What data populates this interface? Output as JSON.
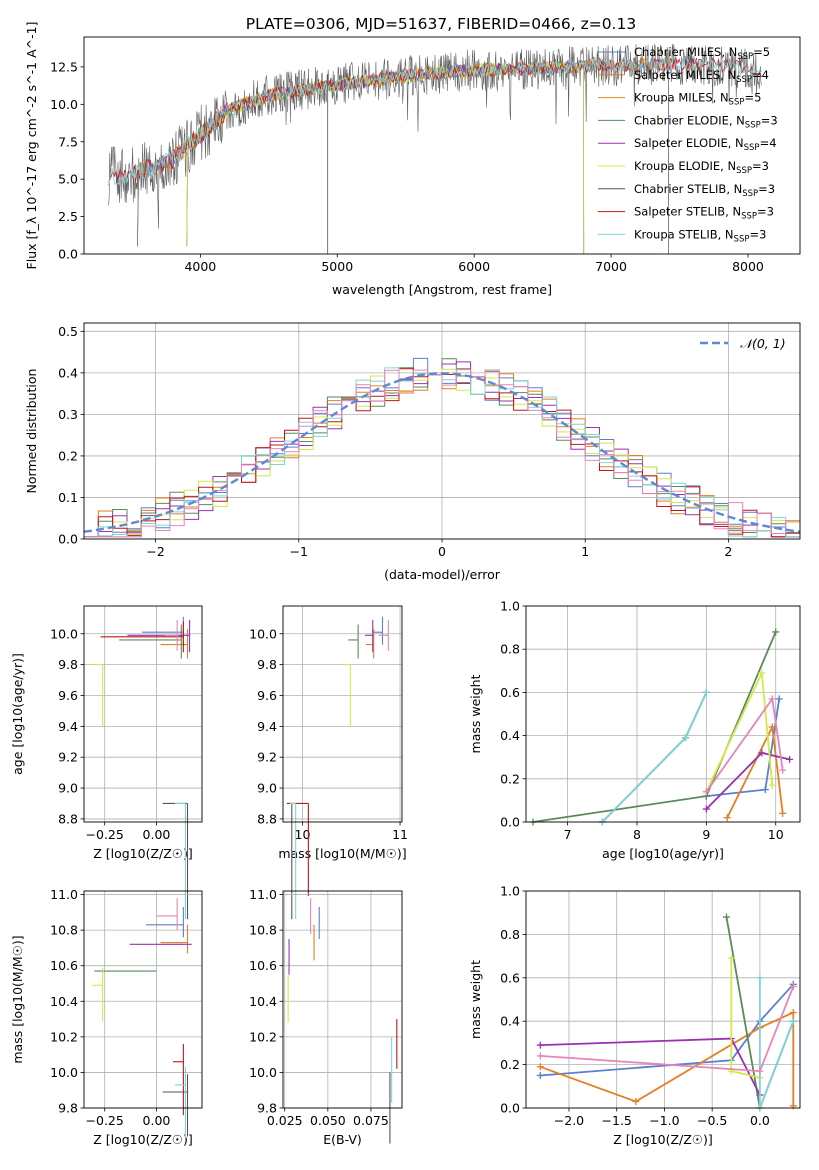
{
  "figure_title": "PLATE=0306, MJD=51637, FIBERID=0466, z=0.13",
  "colors": {
    "Chabrier MILES": "#5b7fd1",
    "Salpeter MILES": "#e67e22",
    "Kroupa MILES": "#e08a1e",
    "Chabrier ELODIE": "#5a8a5a",
    "Salpeter ELODIE": "#9b30b0",
    "Kroupa ELODIE": "#d4e84a",
    "Chabrier STELIB": "#555555",
    "Salpeter STELIB": "#c0141b",
    "Kroupa STELIB": "#7fd4d8",
    "pink": "#e586b8",
    "gaussian": "#5b8ad6"
  },
  "chart_data": [
    {
      "type": "line",
      "title": "PLATE=0306, MJD=51637, FIBERID=0466, z=0.13",
      "xlabel": "wavelength [Angstrom, rest frame]",
      "ylabel": "Flux [f_λ 10^-17 erg cm^-2 s^-1 A^-1]",
      "xlim": [
        3150,
        8380
      ],
      "ylim": [
        0,
        14.5
      ],
      "xticks": [
        "4000",
        "5000",
        "6000",
        "7000",
        "8000"
      ],
      "yticks": [
        "0.0",
        "2.5",
        "5.0",
        "7.5",
        "10.0",
        "12.5"
      ],
      "spectrum_shape": [
        [
          3330,
          5.2
        ],
        [
          3500,
          5.3
        ],
        [
          3800,
          6.3
        ],
        [
          4000,
          8.0
        ],
        [
          4200,
          9.6
        ],
        [
          4500,
          10.6
        ],
        [
          5000,
          11.3
        ],
        [
          5500,
          11.9
        ],
        [
          6000,
          12.3
        ],
        [
          6500,
          12.4
        ],
        [
          7000,
          12.6
        ],
        [
          7500,
          12.7
        ],
        [
          7800,
          12.6
        ],
        [
          8000,
          12.4
        ],
        [
          8100,
          11.9
        ]
      ],
      "legend": [
        {
          "label": "Chabrier MILES, N",
          "sub": "SSP",
          "n": "=5"
        },
        {
          "label": "Salpeter MILES, N",
          "sub": "SSP",
          "n": "=4"
        },
        {
          "label": "Kroupa MILES, N",
          "sub": "SSP",
          "n": "=5"
        },
        {
          "label": "Chabrier ELODIE, N",
          "sub": "SSP",
          "n": "=3"
        },
        {
          "label": "Salpeter ELODIE, N",
          "sub": "SSP",
          "n": "=4"
        },
        {
          "label": "Kroupa ELODIE, N",
          "sub": "SSP",
          "n": "=3"
        },
        {
          "label": "Chabrier STELIB, N",
          "sub": "SSP",
          "n": "=3"
        },
        {
          "label": "Salpeter STELIB, N",
          "sub": "SSP",
          "n": "=3"
        },
        {
          "label": "Kroupa STELIB, N",
          "sub": "SSP",
          "n": "=3"
        }
      ],
      "series": [
        {
          "name": "Chabrier MILES, N_SSP=5",
          "x_start": 3540,
          "x_end": 7420
        },
        {
          "name": "Salpeter MILES, N_SSP=4",
          "x_start": 3540,
          "x_end": 7420
        },
        {
          "name": "Kroupa MILES, N_SSP=5",
          "x_start": 3540,
          "x_end": 7420
        },
        {
          "name": "Chabrier ELODIE, N_SSP=3",
          "x_start": 3900,
          "x_end": 6800
        },
        {
          "name": "Salpeter ELODIE, N_SSP=4",
          "x_start": 3900,
          "x_end": 6800
        },
        {
          "name": "Kroupa ELODIE, N_SSP=3",
          "x_start": 3900,
          "x_end": 6800
        },
        {
          "name": "Chabrier STELIB, N_SSP=3",
          "x_start": 3330,
          "x_end": 8100
        },
        {
          "name": "Salpeter STELIB, N_SSP=3",
          "x_start": 3330,
          "x_end": 8100
        },
        {
          "name": "Kroupa STELIB, N_SSP=3",
          "x_start": 3330,
          "x_end": 8100
        }
      ]
    },
    {
      "type": "histogram",
      "xlabel": "(data-model)/error",
      "ylabel": "Normed distribution",
      "xlim": [
        -2.5,
        2.5
      ],
      "ylim": [
        0,
        0.52
      ],
      "xticks": [
        "-2",
        "-1",
        "0",
        "1",
        "2"
      ],
      "yticks": [
        "0.0",
        "0.1",
        "0.2",
        "0.3",
        "0.4",
        "0.5"
      ],
      "legend": [
        "𝒩(0, 1)"
      ],
      "bin_width": 0.1
    },
    {
      "type": "errorbar",
      "xlabel": "Z [log10(Z/Z☉)]",
      "ylabel": "age [log10(age/yr)]",
      "xlim": [
        -0.35,
        0.22
      ],
      "ylim": [
        8.78,
        10.18
      ],
      "xticks": [
        "-0.25",
        "0.00"
      ],
      "yticks": [
        "8.8",
        "9.0",
        "9.2",
        "9.4",
        "9.6",
        "9.8",
        "10.0"
      ],
      "points": [
        {
          "c": "Chabrier MILES",
          "x": 0.13,
          "y": 10.01,
          "xe": 0.2,
          "ye": 0.08
        },
        {
          "c": "Salpeter MILES",
          "x": 0.15,
          "y": 9.93,
          "xe": 0.13,
          "ye": 0.09
        },
        {
          "c": "Chabrier ELODIE",
          "x": 0.12,
          "y": 9.96,
          "xe": 0.3,
          "ye": 0.12
        },
        {
          "c": "Salpeter ELODIE",
          "x": 0.16,
          "y": 9.99,
          "xe": 0.3,
          "ye": 0.11
        },
        {
          "c": "Kroupa ELODIE",
          "x": -0.26,
          "y": 9.8,
          "xe": 0.05,
          "ye": 0.4
        },
        {
          "c": "Chabrier STELIB",
          "x": 0.15,
          "y": 8.9,
          "xe": 0.12,
          "ye": 0.75
        },
        {
          "c": "Salpeter STELIB",
          "x": 0.13,
          "y": 9.98,
          "xe": 0.4,
          "ye": 0.1
        },
        {
          "c": "Kroupa STELIB",
          "x": 0.14,
          "y": 8.9,
          "xe": 0.05,
          "ye": 0.75
        },
        {
          "c": "pink",
          "x": 0.1,
          "y": 9.99,
          "xe": 0.06,
          "ye": 0.1
        }
      ]
    },
    {
      "type": "errorbar",
      "xlabel": "mass [log10(M/M☉)]",
      "xlim": [
        9.8,
        11.02
      ],
      "ylim": [
        8.78,
        10.18
      ],
      "xticks": [
        "10",
        "11"
      ],
      "yticks": [
        "8.8",
        "9.0",
        "9.2",
        "9.4",
        "9.6",
        "9.8",
        "10.0"
      ],
      "points": [
        {
          "c": "Chabrier MILES",
          "x": 10.82,
          "y": 10.01,
          "xe": 0.1,
          "ye": 0.08
        },
        {
          "c": "Salpeter MILES",
          "x": 10.73,
          "y": 9.93,
          "xe": 0.08,
          "ye": 0.09
        },
        {
          "c": "Chabrier ELODIE",
          "x": 10.57,
          "y": 9.96,
          "xe": 0.1,
          "ye": 0.12
        },
        {
          "c": "Salpeter ELODIE",
          "x": 10.72,
          "y": 9.99,
          "xe": 0.08,
          "ye": 0.11
        },
        {
          "c": "Kroupa ELODIE",
          "x": 10.49,
          "y": 9.8,
          "xe": 0.08,
          "ye": 0.4
        },
        {
          "c": "Chabrier STELIB",
          "x": 9.89,
          "y": 8.9,
          "xe": 0.05,
          "ye": 0.75
        },
        {
          "c": "Salpeter STELIB",
          "x": 10.06,
          "y": 8.9,
          "xe": 0.22,
          "ye": 0.6
        },
        {
          "c": "Kroupa STELIB",
          "x": 9.93,
          "y": 8.9,
          "xe": 0.06,
          "ye": 0.75
        },
        {
          "c": "pink",
          "x": 10.88,
          "y": 9.99,
          "xe": 0.1,
          "ye": 0.1
        }
      ]
    },
    {
      "type": "line",
      "xlabel": "age [log10(age/yr)]",
      "ylabel": "mass weight",
      "xlim": [
        6.4,
        10.35
      ],
      "ylim": [
        0,
        1.0
      ],
      "xticks": [
        "7",
        "8",
        "9",
        "10"
      ],
      "yticks": [
        "0.0",
        "0.2",
        "0.4",
        "0.6",
        "0.8",
        "1.0"
      ],
      "series": [
        {
          "c": "Chabrier MILES",
          "x": [
            9.0,
            9.85,
            10.05
          ],
          "y": [
            0.12,
            0.15,
            0.57
          ]
        },
        {
          "c": "Salpeter MILES",
          "x": [
            9.3,
            9.95,
            10.1
          ],
          "y": [
            0.02,
            0.44,
            0.04
          ]
        },
        {
          "c": "Chabrier ELODIE",
          "x": [
            6.5,
            9.0,
            10.0
          ],
          "y": [
            0.0,
            0.12,
            0.88
          ]
        },
        {
          "c": "Salpeter ELODIE",
          "x": [
            9.0,
            9.8,
            10.2
          ],
          "y": [
            0.06,
            0.32,
            0.29
          ]
        },
        {
          "c": "Kroupa ELODIE",
          "x": [
            9.0,
            9.8,
            9.95
          ],
          "y": [
            0.14,
            0.69,
            0.17
          ]
        },
        {
          "c": "Chabrier STELIB",
          "x": [
            7.5,
            8.7,
            9.0
          ],
          "y": [
            0.0,
            0.39,
            0.6
          ]
        },
        {
          "c": "Kroupa STELIB",
          "x": [
            7.5,
            8.7,
            9.0
          ],
          "y": [
            0.0,
            0.39,
            0.6
          ]
        },
        {
          "c": "pink",
          "x": [
            9.0,
            9.95,
            10.1
          ],
          "y": [
            0.14,
            0.57,
            0.24
          ]
        }
      ]
    },
    {
      "type": "errorbar",
      "xlabel": "Z [log10(Z/Z☉)]",
      "ylabel": "mass [log10(M/M☉)]",
      "xlim": [
        -0.35,
        0.22
      ],
      "ylim": [
        9.8,
        11.02
      ],
      "xticks": [
        "-0.25",
        "0.00"
      ],
      "yticks": [
        "9.8",
        "10.0",
        "10.2",
        "10.4",
        "10.6",
        "10.8",
        "11.0"
      ],
      "points": [
        {
          "c": "Chabrier MILES",
          "x": 0.13,
          "y": 10.83,
          "xe": 0.18,
          "ye": 0.07
        },
        {
          "c": "Salpeter MILES",
          "x": 0.15,
          "y": 10.73,
          "xe": 0.13,
          "ye": 0.06
        },
        {
          "c": "Chabrier ELODIE",
          "x": 0.0,
          "y": 10.57,
          "xe": 0.3,
          "ye": 0.0
        },
        {
          "c": "Salpeter ELODIE",
          "x": 0.17,
          "y": 10.72,
          "xe": 0.3,
          "ye": 0.0
        },
        {
          "c": "Kroupa ELODIE",
          "x": -0.26,
          "y": 10.49,
          "xe": 0.05,
          "ye": 0.2
        },
        {
          "c": "Chabrier STELIB",
          "x": 0.15,
          "y": 9.89,
          "xe": 0.12,
          "ye": 0.25
        },
        {
          "c": "Salpeter STELIB",
          "x": 0.13,
          "y": 10.06,
          "xe": 0.05,
          "ye": 0.3
        },
        {
          "c": "Kroupa STELIB",
          "x": 0.14,
          "y": 9.93,
          "xe": 0.05,
          "ye": 0.3
        },
        {
          "c": "pink",
          "x": 0.1,
          "y": 10.88,
          "xe": 0.1,
          "ye": 0.08
        }
      ]
    },
    {
      "type": "errorbar",
      "xlabel": "E(B-V)",
      "xlim": [
        0.024,
        0.093
      ],
      "ylim": [
        9.8,
        11.02
      ],
      "xticks": [
        "0.025",
        "0.050",
        "0.075"
      ],
      "yticks": [
        "9.8",
        "10.0",
        "10.2",
        "10.4",
        "10.6",
        "10.8",
        "11.0"
      ],
      "points": [
        {
          "c": "Chabrier MILES",
          "x": 0.045,
          "y": 10.83,
          "ye": 0.08
        },
        {
          "c": "Salpeter MILES",
          "x": 0.042,
          "y": 10.73,
          "ye": 0.1
        },
        {
          "c": "Salpeter ELODIE",
          "x": 0.0275,
          "y": 10.65,
          "ye": 0.1
        },
        {
          "c": "Kroupa ELODIE",
          "x": 0.027,
          "y": 10.45,
          "ye": 0.17
        },
        {
          "c": "Chabrier STELIB",
          "x": 0.086,
          "y": 9.9,
          "ye": 0.3
        },
        {
          "c": "Salpeter STELIB",
          "x": 0.09,
          "y": 10.2,
          "ye": 0.18
        },
        {
          "c": "Kroupa STELIB",
          "x": 0.087,
          "y": 10.1,
          "ye": 0.27
        },
        {
          "c": "pink",
          "x": 0.04,
          "y": 10.88,
          "ye": 0.1
        }
      ]
    },
    {
      "type": "line",
      "xlabel": "Z [log10(Z/Z☉)]",
      "ylabel": "mass weight",
      "xlim": [
        -2.45,
        0.42
      ],
      "ylim": [
        0,
        1.0
      ],
      "xticks": [
        "-2.0",
        "-1.5",
        "-1.0",
        "-0.5",
        "0.0"
      ],
      "yticks": [
        "0.0",
        "0.2",
        "0.4",
        "0.6",
        "0.8",
        "1.0"
      ],
      "series": [
        {
          "c": "Chabrier MILES",
          "x": [
            -2.3,
            -0.3,
            0.0,
            0.35
          ],
          "y": [
            0.15,
            0.22,
            0.4,
            0.57
          ]
        },
        {
          "c": "Salpeter MILES",
          "x": [
            -2.3,
            -1.3,
            0.0,
            0.35,
            0.35
          ],
          "y": [
            0.19,
            0.03,
            0.37,
            0.44,
            0.01
          ]
        },
        {
          "c": "Chabrier ELODIE",
          "x": [
            -0.35,
            0.0,
            0.35
          ],
          "y": [
            0.88,
            0.0,
            0.4
          ]
        },
        {
          "c": "Salpeter ELODIE",
          "x": [
            -2.3,
            -0.3,
            0.0
          ],
          "y": [
            0.29,
            0.32,
            0.06
          ]
        },
        {
          "c": "Kroupa ELODIE",
          "x": [
            -0.3,
            -0.3,
            0.0
          ],
          "y": [
            0.69,
            0.17,
            0.14
          ]
        },
        {
          "c": "Kroupa STELIB",
          "x": [
            0.0,
            0.0,
            0.35
          ],
          "y": [
            0.6,
            0.0,
            0.4
          ]
        },
        {
          "c": "pink",
          "x": [
            -2.3,
            0.0,
            0.35
          ],
          "y": [
            0.24,
            0.17,
            0.56
          ]
        }
      ]
    }
  ]
}
